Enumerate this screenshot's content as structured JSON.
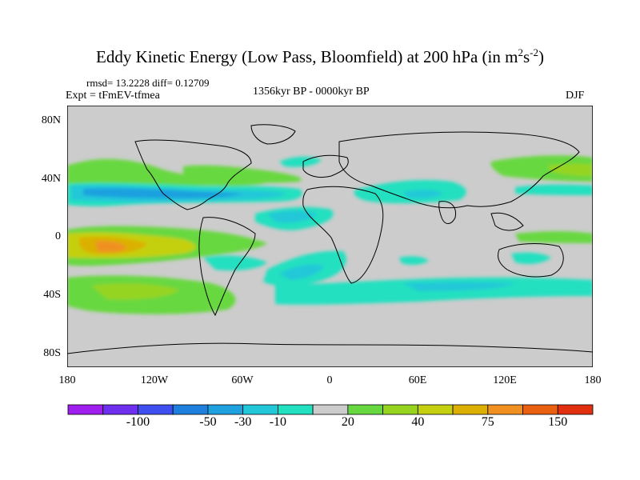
{
  "title": {
    "main": "Eddy Kinetic Energy (Low Pass, Bloomfield) at 200 hPa (in m",
    "exp1": "2",
    "mid": "s",
    "exp2": "-2",
    "close": ")"
  },
  "stats": "rmsd= 13.2228  diff= 0.12709",
  "experiment": "Expt = tFmEV-tfmea",
  "period": "1356kyr BP - 0000kyr BP",
  "season": "DJF",
  "lat_labels": [
    "80N",
    "40N",
    "0",
    "40S",
    "80S"
  ],
  "lon_labels": [
    "180",
    "120W",
    "60W",
    "0",
    "60E",
    "120E",
    "180"
  ],
  "colorbar": {
    "colors": [
      "#9f1fef",
      "#6f2fef",
      "#3f4fef",
      "#1f7fdf",
      "#1fa0df",
      "#22c8d8",
      "#22e0c0",
      "#cccccc",
      "#68d840",
      "#96d420",
      "#c4d010",
      "#dcb000",
      "#f09020",
      "#e86010",
      "#e03010"
    ],
    "labels": [
      "-100",
      "-50",
      "-30",
      "-10",
      "20",
      "40",
      "75",
      "150"
    ]
  },
  "chart_data": {
    "type": "heatmap",
    "title": "Eddy Kinetic Energy (Low Pass, Bloomfield) at 200 hPa (in m2s-2)",
    "subtitle": "1356kyr BP - 0000kyr BP",
    "season": "DJF",
    "units": "m2 s-2",
    "x_range": [
      -180,
      180
    ],
    "y_range": [
      -90,
      90
    ],
    "contour_levels": [
      -150,
      -100,
      -75,
      -50,
      -40,
      -30,
      -20,
      -10,
      10,
      20,
      30,
      40,
      50,
      75,
      100,
      150
    ],
    "features": [
      {
        "name": "east-pacific-equatorial-max",
        "lon": -140,
        "lat": -5,
        "value": 75
      },
      {
        "name": "north-pacific-negative",
        "lon": -120,
        "lat": 32,
        "value": -50
      },
      {
        "name": "north-atlantic-negative",
        "lon": -20,
        "lat": 10,
        "value": -30
      },
      {
        "name": "south-atlantic-negative",
        "lon": -20,
        "lat": -25,
        "value": -30
      },
      {
        "name": "asia-jet-negative",
        "lon": 70,
        "lat": 25,
        "value": -30
      },
      {
        "name": "north-pacific-positive",
        "lon": -150,
        "lat": 45,
        "value": 20
      },
      {
        "name": "west-pacific-positive",
        "lon": 160,
        "lat": 43,
        "value": 30
      },
      {
        "name": "southern-ocean-negative",
        "lon": 60,
        "lat": -38,
        "value": -20
      },
      {
        "name": "south-pacific-positive",
        "lon": -130,
        "lat": -45,
        "value": 20
      }
    ]
  }
}
